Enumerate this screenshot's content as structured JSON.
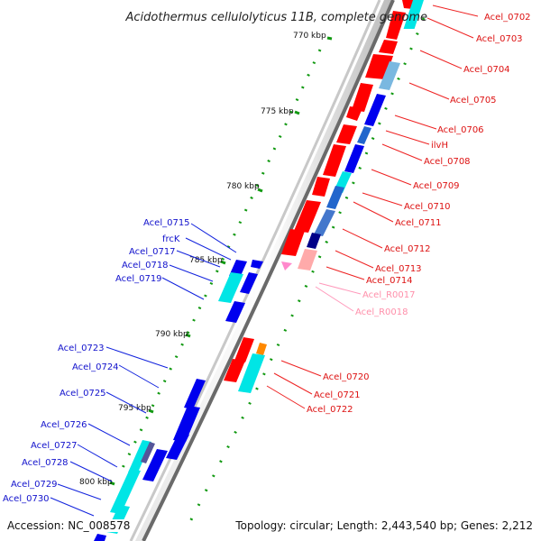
{
  "title": "Acidothermus cellulolyticus 11B, complete genome",
  "footer": {
    "accession": "Accession: NC_008578",
    "topology": "Topology: circular; Length: 2,443,540 bp; Genes: 2,212"
  },
  "colors": {
    "forward_cds": "#ff0000",
    "reverse_cds": "#0000ee",
    "rna": "#ffaaaa",
    "cyan": "#00e5e5",
    "forward_label": "#dd1111",
    "reverse_label": "#1111cc",
    "rna_label": "#ff8faa"
  },
  "ticks": [
    "770 kbp",
    "775 kbp",
    "780 kbp",
    "785 kbp",
    "790 kbp",
    "795 kbp",
    "800 kbp"
  ],
  "right_labels": [
    "Acel_0702",
    "Acel_0703",
    "Acel_0704",
    "Acel_0705",
    "Acel_0706",
    "ilvH",
    "Acel_0708",
    "Acel_0709",
    "Acel_0710",
    "Acel_0711",
    "Acel_0712",
    "Acel_0713",
    "Acel_0714",
    "Acel_R0017",
    "Acel_R0018",
    "Acel_0720",
    "Acel_0721",
    "Acel_0722"
  ],
  "left_labels": [
    "Acel_0715",
    "frcK",
    "Acel_0717",
    "Acel_0718",
    "Acel_0719",
    "Acel_0723",
    "Acel_0724",
    "Acel_0725",
    "Acel_0726",
    "Acel_0727",
    "Acel_0728",
    "Acel_0729",
    "Acel_0730"
  ]
}
